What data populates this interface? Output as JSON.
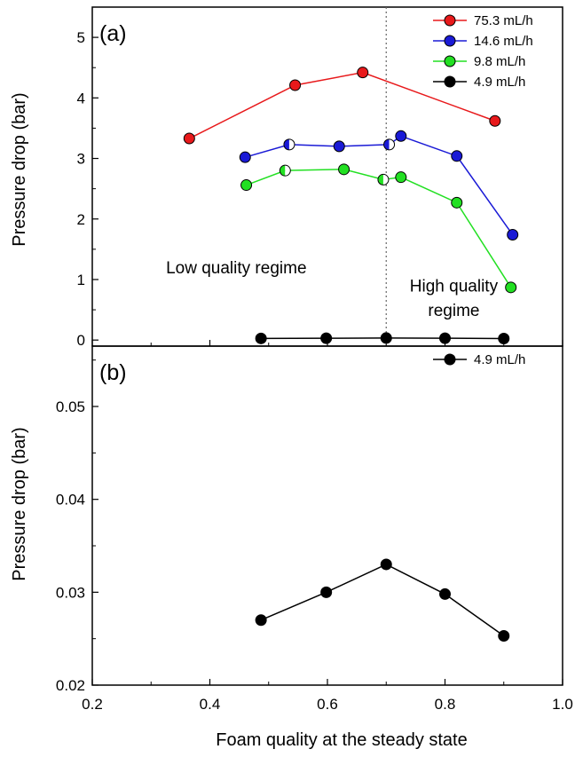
{
  "figure": {
    "xlabel": "Foam quality at the steady state",
    "xlim": [
      0.2,
      1.0
    ],
    "xticks": [
      0.2,
      0.4,
      0.6,
      0.8,
      1.0
    ],
    "xtick_labels": [
      "0.2",
      "0.4",
      "0.6",
      "0.8",
      "1.0"
    ]
  },
  "colors": {
    "red": "#e8191b",
    "blue": "#1a1ad6",
    "green": "#22e022",
    "black": "#000000"
  },
  "chart_data": [
    {
      "type": "line",
      "panel_label": "(a)",
      "ylabel": "Pressure drop (bar)",
      "xlim": [
        0.2,
        1.0
      ],
      "ylim": [
        -0.1,
        5.5
      ],
      "yticks": [
        0,
        1,
        2,
        3,
        4,
        5
      ],
      "ytick_labels": [
        "0",
        "1",
        "2",
        "3",
        "4",
        "5"
      ],
      "legend_position": "top-right",
      "annotations": [
        {
          "text": "Low quality regime",
          "x": 0.445,
          "y": 1.1
        },
        {
          "text": "High quality",
          "x": 0.815,
          "y": 0.8
        },
        {
          "text": "regime",
          "x": 0.815,
          "y": 0.4
        }
      ],
      "vline_x": 0.7,
      "series": [
        {
          "name": "75.3 mL/h",
          "color": "red",
          "x": [
            0.365,
            0.545,
            0.66,
            0.885
          ],
          "y": [
            3.33,
            4.21,
            4.42,
            3.62
          ]
        },
        {
          "name": "14.6 mL/h",
          "color": "blue",
          "x": [
            0.46,
            0.535,
            0.62,
            0.705,
            0.725,
            0.82,
            0.915
          ],
          "y": [
            3.02,
            3.23,
            3.2,
            3.23,
            3.37,
            3.04,
            1.74
          ]
        },
        {
          "name": "9.8 mL/h",
          "color": "green",
          "x": [
            0.462,
            0.528,
            0.628,
            0.695,
            0.725,
            0.82,
            0.912
          ],
          "y": [
            2.56,
            2.8,
            2.82,
            2.65,
            2.69,
            2.27,
            0.87
          ]
        },
        {
          "name": "4.9 mL/h",
          "color": "black",
          "x": [
            0.487,
            0.598,
            0.7,
            0.8,
            0.9
          ],
          "y": [
            0.027,
            0.03,
            0.033,
            0.03,
            0.025
          ]
        }
      ],
      "half_filled_points": [
        {
          "series": 1,
          "index": 1
        },
        {
          "series": 1,
          "index": 3
        },
        {
          "series": 2,
          "index": 1
        },
        {
          "series": 2,
          "index": 3
        }
      ]
    },
    {
      "type": "line",
      "panel_label": "(b)",
      "ylabel": "Pressure drop (bar)",
      "xlim": [
        0.2,
        1.0
      ],
      "ylim": [
        0.02,
        0.0565
      ],
      "yticks": [
        0.02,
        0.03,
        0.04,
        0.05
      ],
      "ytick_labels": [
        "0.02",
        "0.03",
        "0.04",
        "0.05"
      ],
      "legend_position": "top-right",
      "series": [
        {
          "name": "4.9 mL/h",
          "color": "black",
          "x": [
            0.487,
            0.598,
            0.7,
            0.8,
            0.9
          ],
          "y": [
            0.027,
            0.03,
            0.033,
            0.0298,
            0.0253
          ]
        }
      ]
    }
  ]
}
